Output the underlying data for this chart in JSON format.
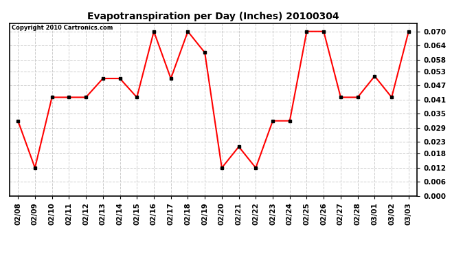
{
  "title": "Evapotranspiration per Day (Inches) 20100304",
  "copyright_text": "Copyright 2010 Cartronics.com",
  "dates": [
    "02/08",
    "02/09",
    "02/10",
    "02/11",
    "02/12",
    "02/13",
    "02/14",
    "02/15",
    "02/16",
    "02/17",
    "02/18",
    "02/19",
    "02/20",
    "02/21",
    "02/22",
    "02/23",
    "02/24",
    "02/25",
    "02/26",
    "02/27",
    "02/28",
    "03/01",
    "03/02",
    "03/03"
  ],
  "values": [
    0.032,
    0.012,
    0.042,
    0.042,
    0.042,
    0.05,
    0.05,
    0.042,
    0.07,
    0.05,
    0.07,
    0.061,
    0.012,
    0.021,
    0.012,
    0.032,
    0.032,
    0.07,
    0.07,
    0.042,
    0.042,
    0.051,
    0.042,
    0.07
  ],
  "ylim": [
    0.0,
    0.0735
  ],
  "yticks": [
    0.0,
    0.006,
    0.012,
    0.018,
    0.023,
    0.029,
    0.035,
    0.041,
    0.047,
    0.053,
    0.058,
    0.064,
    0.07
  ],
  "line_color": "red",
  "marker_color": "black",
  "background_color": "white",
  "grid_color": "#cccccc"
}
